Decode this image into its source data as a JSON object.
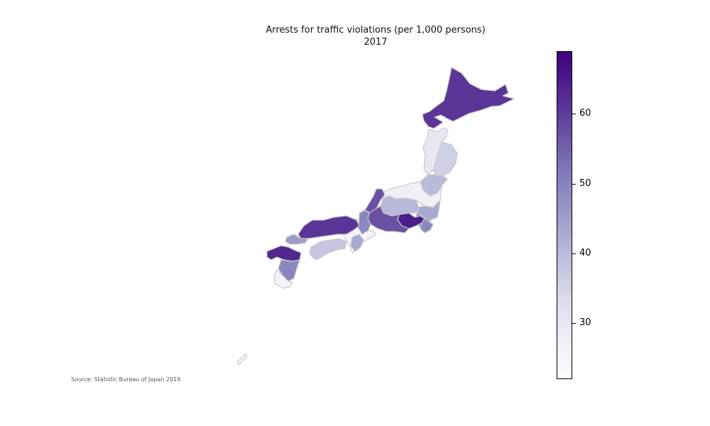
{
  "map": {
    "title_line1": "Arrests for traffic violations (per 1,000 persons)",
    "title_line2": "2017",
    "source": "Source: Statistic Bureau of Japan 2019",
    "colormap": [
      "#fcfbfd",
      "#efedf5",
      "#dadaeb",
      "#bcbddc",
      "#9e9ac8",
      "#807dba",
      "#6a51a3",
      "#54278f",
      "#3f007d"
    ],
    "border_color": "#c9c9c9",
    "region_colors": {
      "hokkaido": "#5b3597",
      "tohoku_north": "#e8e6f1",
      "tohoku_east": "#cfd0e5",
      "tohoku_mid": "#b9b9da",
      "hokuriku": "#f1eff6",
      "kanto_north": "#a8a8d0",
      "kanto_west": "#8a87c0",
      "tokyo": "#4b1f8a",
      "chubu_mid": "#b8b8d9",
      "chubu_south": "#6a51a3",
      "kinki": "#f4f3f8",
      "chugoku": "#5b3597",
      "chugoku_west": "#9e9ac8",
      "shikoku": "#c5c5e0",
      "kyushu_north": "#54278f",
      "kyushu_mid": "#8a87c0",
      "kyushu_south": "#f4f3f8",
      "okinawa": "#f4f3f8"
    }
  },
  "colorbar": {
    "min": 22,
    "max": 69,
    "ticks": [
      {
        "value": 30,
        "label": "30"
      },
      {
        "value": 40,
        "label": "40"
      },
      {
        "value": 50,
        "label": "50"
      },
      {
        "value": 60,
        "label": "60"
      }
    ]
  }
}
